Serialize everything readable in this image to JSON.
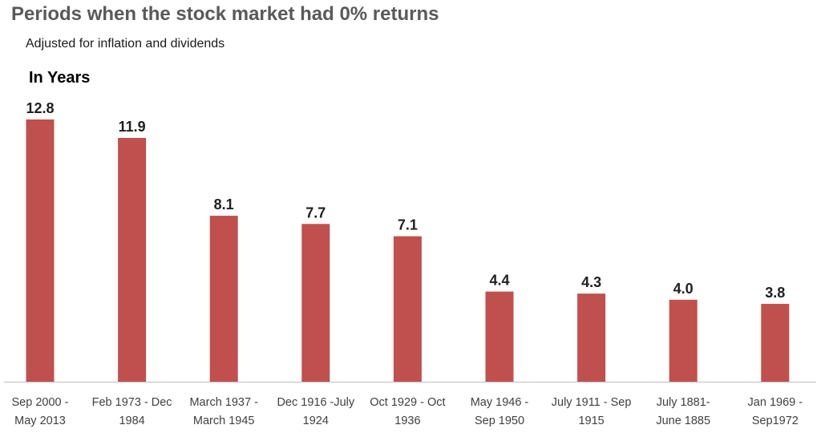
{
  "chart_data": {
    "type": "bar",
    "title": "Periods when the stock market had 0% returns",
    "subtitle": "Adjusted for inflation and dividends",
    "ylabel": "In Years",
    "xlabel": "",
    "categories": [
      [
        "Sep 2000 -",
        "May 2013"
      ],
      [
        "Feb 1973 - Dec",
        "1984"
      ],
      [
        "March 1937 -",
        "March 1945"
      ],
      [
        "Dec 1916 -July",
        "1924"
      ],
      [
        "Oct 1929 - Oct",
        "1936"
      ],
      [
        "May 1946 -",
        "Sep 1950"
      ],
      [
        "July 1911 - Sep",
        "1915"
      ],
      [
        "July 1881-",
        "June 1885"
      ],
      [
        "Jan 1969 -",
        "Sep1972"
      ]
    ],
    "values": [
      12.8,
      11.9,
      8.1,
      7.7,
      7.1,
      4.4,
      4.3,
      4.0,
      3.8
    ],
    "value_labels": [
      "12.8",
      "11.9",
      "8.1",
      "7.7",
      "7.1",
      "4.4",
      "4.3",
      "4.0",
      "3.8"
    ],
    "ylim": [
      0,
      12.8
    ],
    "grid": false,
    "legend": "none",
    "bar_color": "#c0504d",
    "axis_color": "#bfbfbf"
  }
}
